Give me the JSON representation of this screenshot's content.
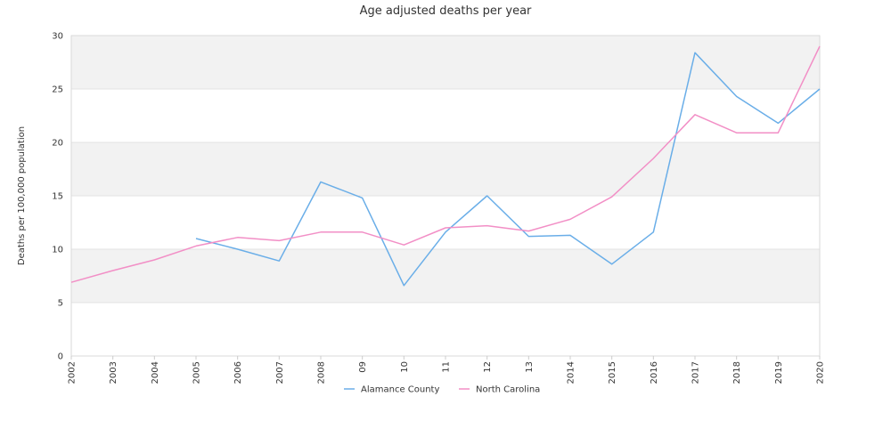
{
  "chart_data": {
    "type": "line",
    "title": "Age adjusted deaths per year",
    "xlabel": "",
    "ylabel": "Deaths per 100,000 population",
    "ylim": [
      0,
      30
    ],
    "yticks": [
      "0",
      "5",
      "10",
      "15",
      "20",
      "25",
      "30"
    ],
    "categories": [
      "2002",
      "2003",
      "2004",
      "2005",
      "2006",
      "2007",
      "2008",
      "09",
      "10",
      "11",
      "12",
      "13",
      "2014",
      "2015",
      "2016",
      "2017",
      "2018",
      "2019",
      "2020"
    ],
    "grid": "horizontal bands",
    "legend_position": "bottom",
    "series": [
      {
        "name": "Alamance County",
        "color": "#6aaee8",
        "values": [
          null,
          null,
          null,
          11.0,
          10.0,
          8.9,
          16.3,
          14.8,
          6.6,
          11.6,
          15.0,
          11.2,
          11.3,
          8.6,
          11.6,
          28.4,
          24.3,
          21.8,
          25.0
        ]
      },
      {
        "name": "North Carolina",
        "color": "#f28fc6",
        "values": [
          6.9,
          8.0,
          9.0,
          10.3,
          11.1,
          10.8,
          11.6,
          11.6,
          10.4,
          12.0,
          12.2,
          11.7,
          12.8,
          14.9,
          18.5,
          22.6,
          20.9,
          20.9,
          29.0
        ]
      }
    ]
  }
}
